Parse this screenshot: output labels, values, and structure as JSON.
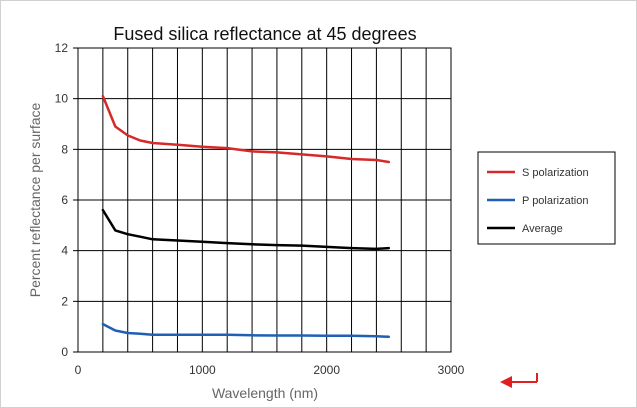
{
  "chart_data": {
    "type": "line",
    "title": "Fused silica reflectance at 45 degrees",
    "xlabel": "Wavelength (nm)",
    "ylabel": "Percent reflectance per surface",
    "xlim": [
      0,
      3000
    ],
    "ylim": [
      0,
      12
    ],
    "xticks": [
      0,
      1000,
      2000,
      3000
    ],
    "yticks": [
      0,
      2,
      4,
      6,
      8,
      10,
      12
    ],
    "x_minor_step": 200,
    "grid": true,
    "legend_position": "right",
    "x": [
      200,
      300,
      400,
      500,
      600,
      800,
      1000,
      1200,
      1400,
      1600,
      1800,
      2000,
      2200,
      2400,
      2500
    ],
    "series": [
      {
        "name": "S polarization",
        "color": "#d42a2a",
        "values": [
          10.1,
          8.9,
          8.55,
          8.35,
          8.25,
          8.18,
          8.1,
          8.05,
          7.92,
          7.88,
          7.8,
          7.72,
          7.62,
          7.58,
          7.5
        ]
      },
      {
        "name": "P polarization",
        "color": "#1f5fb4",
        "values": [
          1.1,
          0.85,
          0.75,
          0.72,
          0.68,
          0.68,
          0.68,
          0.68,
          0.66,
          0.65,
          0.65,
          0.64,
          0.64,
          0.62,
          0.6
        ]
      },
      {
        "name": "Average",
        "color": "#000000",
        "values": [
          5.6,
          4.8,
          4.65,
          4.55,
          4.45,
          4.4,
          4.35,
          4.3,
          4.25,
          4.22,
          4.2,
          4.15,
          4.1,
          4.07,
          4.1
        ]
      }
    ]
  },
  "ui": {
    "back_arrow_icon": "left-arrow-icon",
    "back_arrow_color": "#e02020"
  }
}
